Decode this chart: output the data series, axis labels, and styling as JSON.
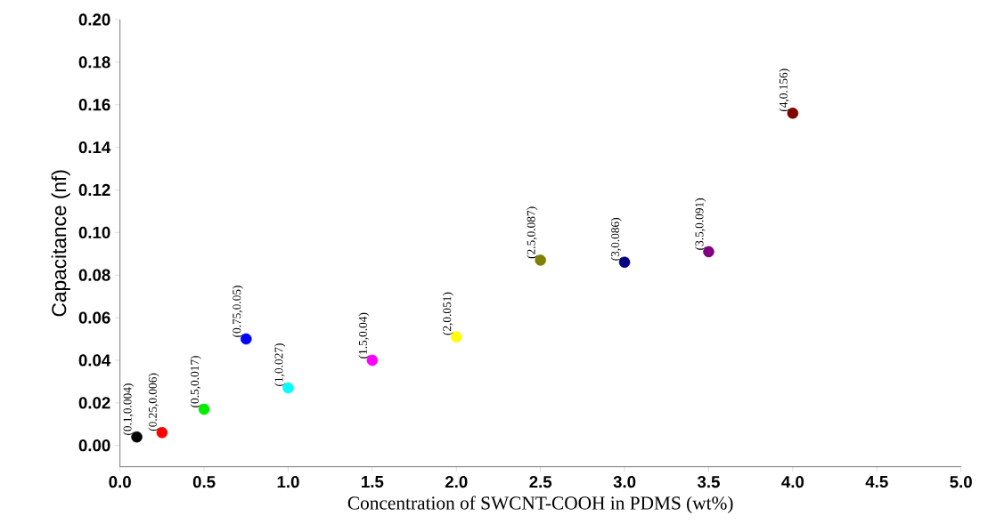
{
  "chart_data": {
    "type": "scatter",
    "xlabel": "Concentration of SWCNT-COOH in PDMS (wt%)",
    "ylabel": "Capacitance (nf)",
    "xlim": [
      0,
      5
    ],
    "ylim": [
      -0.01,
      0.2
    ],
    "xticks": [
      {
        "value": 0,
        "label": "0.0"
      },
      {
        "value": 0.5,
        "label": "0.5"
      },
      {
        "value": 1,
        "label": "1.0"
      },
      {
        "value": 1.5,
        "label": "1.5"
      },
      {
        "value": 2,
        "label": "2.0"
      },
      {
        "value": 2.5,
        "label": "2.5"
      },
      {
        "value": 3,
        "label": "3.0"
      },
      {
        "value": 3.5,
        "label": "3.5"
      },
      {
        "value": 4,
        "label": "4.0"
      },
      {
        "value": 4.5,
        "label": "4.5"
      },
      {
        "value": 5,
        "label": "5.0"
      }
    ],
    "yticks": [
      {
        "value": 0,
        "label": "0.00"
      },
      {
        "value": 0.02,
        "label": "0.02"
      },
      {
        "value": 0.04,
        "label": "0.04"
      },
      {
        "value": 0.06,
        "label": "0.06"
      },
      {
        "value": 0.08,
        "label": "0.08"
      },
      {
        "value": 0.1,
        "label": "0.10"
      },
      {
        "value": 0.12,
        "label": "0.12"
      },
      {
        "value": 0.14,
        "label": "0.14"
      },
      {
        "value": 0.16,
        "label": "0.16"
      },
      {
        "value": 0.18,
        "label": "0.18"
      },
      {
        "value": 0.2,
        "label": "0.20"
      }
    ],
    "x": [
      0.1,
      0.25,
      0.5,
      0.75,
      1,
      1.5,
      2,
      2.5,
      3,
      3.5,
      4
    ],
    "values": [
      0.004,
      0.006,
      0.017,
      0.05,
      0.027,
      0.04,
      0.051,
      0.087,
      0.086,
      0.091,
      0.156
    ],
    "colors": [
      "#000000",
      "#ff0000",
      "#00ee00",
      "#0000ff",
      "#00ffff",
      "#ff00ff",
      "#ffff00",
      "#808000",
      "#000080",
      "#800080",
      "#800000"
    ],
    "value_labels": [
      "(0.1,0.004)",
      "(0.25,0.006)",
      "(0.5,0.017)",
      "(0.75,0.05)",
      "(1,0.027)",
      "(1.5,0.04)",
      "(2,0.051)",
      "(2.5,0.087)",
      "(3,0.086)",
      "(3.5,0.091)",
      "(4,0.156)"
    ]
  }
}
